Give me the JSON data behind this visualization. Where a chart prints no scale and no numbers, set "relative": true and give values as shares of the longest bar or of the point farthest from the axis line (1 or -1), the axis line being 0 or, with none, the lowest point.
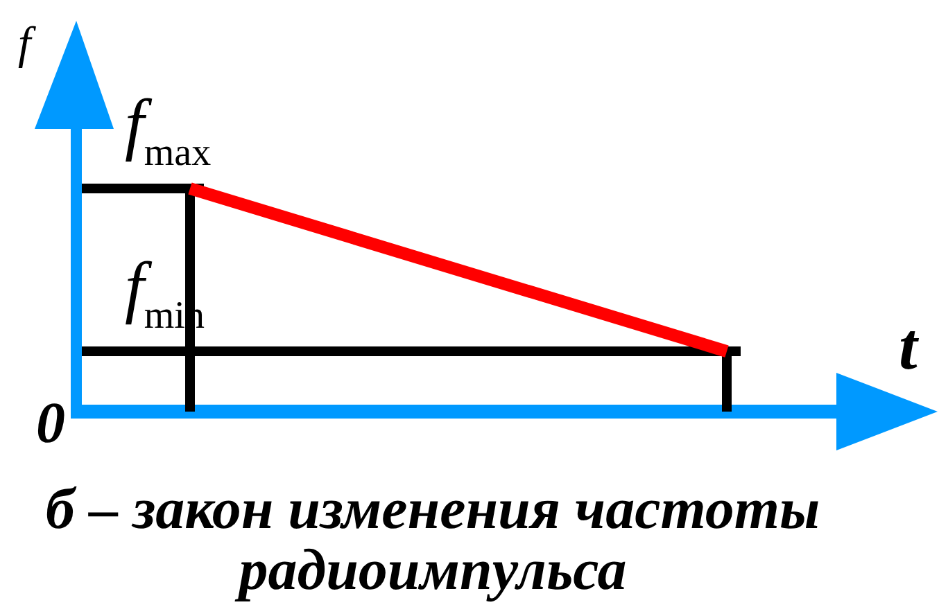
{
  "chart_data": {
    "type": "line",
    "title": "б – закон изменения частоты радиоимпульса",
    "xlabel": "t",
    "ylabel": "f",
    "relative": true,
    "categories": [
      null,
      null
    ],
    "series": [
      {
        "color": "#ff0000",
        "values": [
          1,
          0.27
        ]
      }
    ],
    "ref_lines": [
      {
        "axis": "y",
        "value": 1,
        "label": "f$_{max}$",
        "color": "#000000"
      },
      {
        "axis": "y",
        "value": 0.27,
        "label": "f$_{min}$",
        "color": "#000000"
      }
    ],
    "annotations": [
      "0"
    ]
  }
}
